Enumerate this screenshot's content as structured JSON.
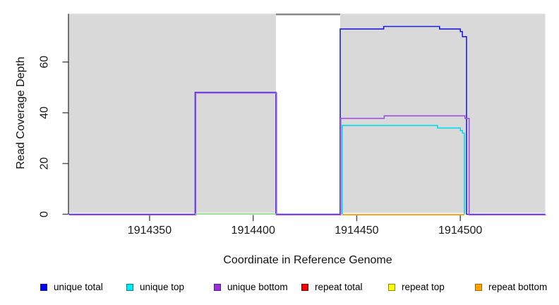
{
  "chart_data": {
    "type": "line",
    "title": "",
    "xlabel": "Coordinate in Reference Genome",
    "ylabel": "Read Coverage Depth",
    "xlim": [
      1914311,
      1914541
    ],
    "ylim": [
      0,
      79
    ],
    "grid": false,
    "legend_position": "bottom",
    "x_ticks": [
      {
        "value": 1914350,
        "label": "1914350"
      },
      {
        "value": 1914400,
        "label": "1914400"
      },
      {
        "value": 1914450,
        "label": "1914450"
      },
      {
        "value": 1914500,
        "label": "1914500"
      }
    ],
    "y_ticks": [
      {
        "value": 0,
        "label": "0"
      },
      {
        "value": 20,
        "label": "20"
      },
      {
        "value": 40,
        "label": "40"
      },
      {
        "value": 60,
        "label": "60"
      }
    ],
    "shaded_regions": [
      {
        "from": 1914311,
        "to": 1914411,
        "color": "#d9d9d9"
      },
      {
        "from": 1914442,
        "to": 1914541,
        "color": "#d9d9d9"
      }
    ],
    "gap_region": {
      "from": 1914411,
      "to": 1914442,
      "top_line_color": "#7d7d7d"
    },
    "series": [
      {
        "name": "unique total",
        "color": "#1f1fe0",
        "width": 1.6,
        "dx": 0,
        "dy": 0,
        "points": [
          [
            1914311,
            0
          ],
          [
            1914372,
            0
          ],
          [
            1914372,
            48
          ],
          [
            1914411,
            48
          ],
          [
            1914411,
            0
          ],
          [
            1914442,
            0
          ],
          [
            1914442,
            73
          ],
          [
            1914463,
            73
          ],
          [
            1914463,
            74
          ],
          [
            1914490,
            74
          ],
          [
            1914490,
            73
          ],
          [
            1914500,
            73
          ],
          [
            1914500,
            72
          ],
          [
            1914501,
            72
          ],
          [
            1914501,
            70
          ],
          [
            1914503,
            70
          ],
          [
            1914503,
            0
          ],
          [
            1914541,
            0
          ]
        ]
      },
      {
        "name": "unique top",
        "color": "#00dce8",
        "width": 1.6,
        "dx": 0,
        "dy": 0,
        "points": [
          [
            1914443,
            0
          ],
          [
            1914443,
            35
          ],
          [
            1914489,
            35
          ],
          [
            1914489,
            34
          ],
          [
            1914500,
            34
          ],
          [
            1914500,
            33
          ],
          [
            1914501,
            33
          ],
          [
            1914501,
            32
          ],
          [
            1914502,
            32
          ],
          [
            1914502,
            0
          ]
        ]
      },
      {
        "name": "repeat bottom",
        "color": "#ff9800",
        "width": 1.8,
        "dx": 0,
        "dy": 0.6,
        "points": [
          [
            1914443,
            0
          ],
          [
            1914502,
            0
          ]
        ]
      },
      {
        "name": "unique bottom",
        "color": "#a052e0",
        "width": 1.6,
        "dx": 0.8,
        "dy": 0.8,
        "points": [
          [
            1914311,
            0
          ],
          [
            1914372,
            0
          ],
          [
            1914372,
            48
          ],
          [
            1914411,
            48
          ],
          [
            1914411,
            0
          ],
          [
            1914442,
            0
          ],
          [
            1914442,
            38
          ],
          [
            1914463,
            38
          ],
          [
            1914463,
            39
          ],
          [
            1914502,
            39
          ],
          [
            1914502,
            38
          ],
          [
            1914504,
            38
          ],
          [
            1914504,
            0
          ],
          [
            1914541,
            0
          ]
        ]
      },
      {
        "name": "green zero segment",
        "color": "#86d986",
        "width": 1.6,
        "dx": 0,
        "dy": -0.4,
        "points": [
          [
            1914372,
            0
          ],
          [
            1914411,
            0
          ]
        ]
      }
    ],
    "legend": [
      {
        "label": "unique total",
        "fill": "#0000f0",
        "border": "#1a1aa0"
      },
      {
        "label": "unique top",
        "fill": "#00e8f0",
        "border": "#008b8b"
      },
      {
        "label": "unique bottom",
        "fill": "#9a30d5",
        "border": "#5a1a8b"
      },
      {
        "label": "repeat total",
        "fill": "#ee0000",
        "border": "#8b0000"
      },
      {
        "label": "repeat top",
        "fill": "#ffff00",
        "border": "#8b8b00"
      },
      {
        "label": "repeat bottom",
        "fill": "#ffa500",
        "border": "#b06000"
      }
    ],
    "axis_color": "#404040",
    "tick_color": "#555555",
    "tick_label_color": "#1a1a1a"
  }
}
